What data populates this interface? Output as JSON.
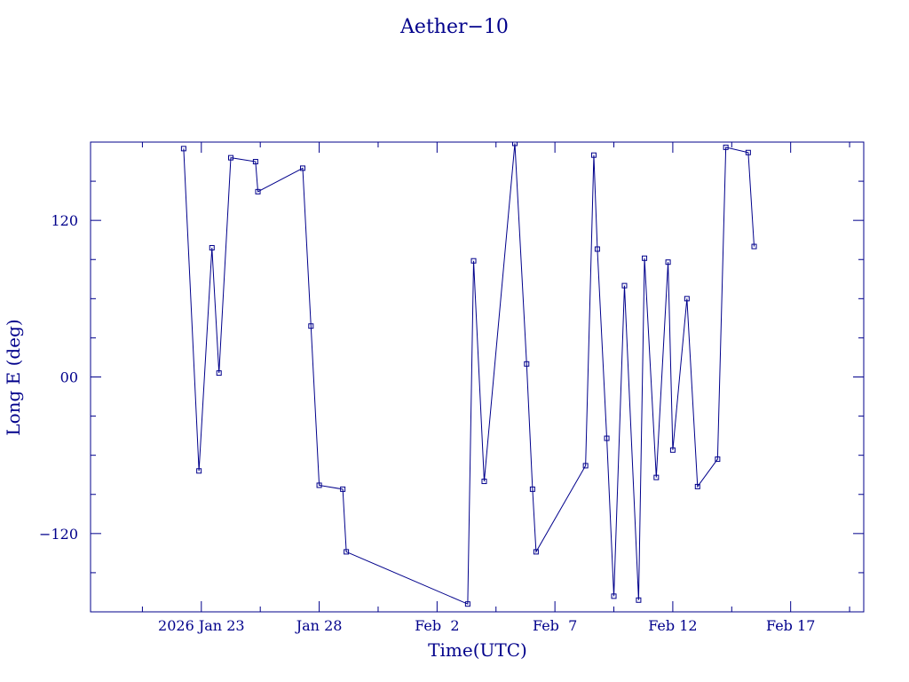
{
  "chart_data": {
    "type": "line",
    "title": "Aether−10",
    "xlabel": "Time(UTC)",
    "ylabel": "Long E (deg)",
    "x_unit": "days (day 0 = first x tick, 2026 Jan 23)",
    "xlim": [
      -4.7,
      28.1
    ],
    "ylim": [
      -180,
      180
    ],
    "x_ticks": [
      {
        "value": 0,
        "label": "2026 Jan 23"
      },
      {
        "value": 5,
        "label": "Jan 28"
      },
      {
        "value": 10,
        "label": "Feb  2"
      },
      {
        "value": 15,
        "label": "Feb  7"
      },
      {
        "value": 20,
        "label": "Feb 12"
      },
      {
        "value": 25,
        "label": "Feb 17"
      }
    ],
    "y_ticks": [
      {
        "value": 120,
        "label": "120"
      },
      {
        "value": 0,
        "label": "00"
      },
      {
        "value": -120,
        "label": "−120"
      }
    ],
    "grid": false,
    "series": [
      {
        "points": [
          {
            "x": -0.75,
            "y": 175
          },
          {
            "x": -0.1,
            "y": -72
          },
          {
            "x": 0.45,
            "y": 99
          },
          {
            "x": 0.75,
            "y": 3
          },
          {
            "x": 1.25,
            "y": 168
          },
          {
            "x": 2.3,
            "y": 165
          },
          {
            "x": 2.4,
            "y": 142
          },
          {
            "x": 4.3,
            "y": 160
          },
          {
            "x": 4.65,
            "y": 39
          },
          {
            "x": 5.0,
            "y": -83
          },
          {
            "x": 6.0,
            "y": -86
          },
          {
            "x": 6.15,
            "y": -134
          },
          {
            "x": 11.3,
            "y": -174
          },
          {
            "x": 11.55,
            "y": 89
          },
          {
            "x": 12.0,
            "y": -80
          },
          {
            "x": 13.3,
            "y": 179
          },
          {
            "x": 13.8,
            "y": 10
          },
          {
            "x": 14.05,
            "y": -86
          },
          {
            "x": 14.2,
            "y": -134
          },
          {
            "x": 16.3,
            "y": -68
          },
          {
            "x": 16.65,
            "y": 170
          },
          {
            "x": 16.8,
            "y": 98
          },
          {
            "x": 17.2,
            "y": -47
          },
          {
            "x": 17.5,
            "y": -168
          },
          {
            "x": 17.95,
            "y": 70
          },
          {
            "x": 18.55,
            "y": -171
          },
          {
            "x": 18.8,
            "y": 91
          },
          {
            "x": 19.3,
            "y": -77
          },
          {
            "x": 19.8,
            "y": 88
          },
          {
            "x": 20.0,
            "y": -56
          },
          {
            "x": 20.6,
            "y": 60
          },
          {
            "x": 21.05,
            "y": -84
          },
          {
            "x": 21.9,
            "y": -63
          },
          {
            "x": 22.25,
            "y": 176
          },
          {
            "x": 23.2,
            "y": 172
          },
          {
            "x": 23.45,
            "y": 100
          }
        ]
      }
    ]
  }
}
